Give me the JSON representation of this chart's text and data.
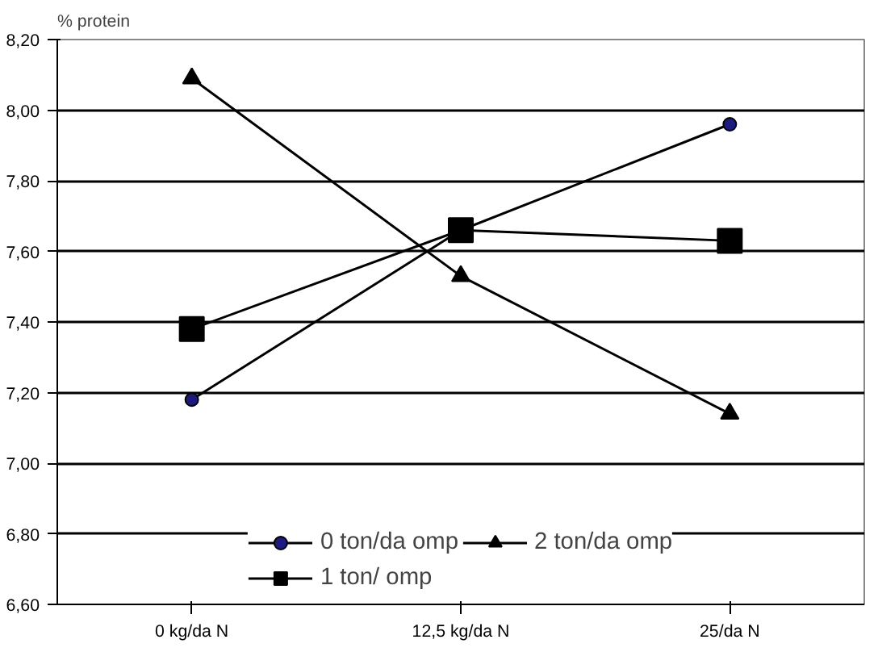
{
  "chart_data": {
    "type": "line",
    "ylabel": "% protein",
    "categories": [
      "0 kg/da N",
      "12,5 kg/da N",
      "25/da N"
    ],
    "series": [
      {
        "name": "0 ton/da omp",
        "color": "#000000",
        "marker": "circle",
        "values": [
          7.18,
          7.66,
          7.96
        ]
      },
      {
        "name": "1 ton/ omp",
        "color": "#000000",
        "marker": "square",
        "values": [
          7.38,
          7.66,
          7.63
        ]
      },
      {
        "name": "2 ton/da omp",
        "color": "#000000",
        "marker": "triangle",
        "values": [
          8.09,
          7.53,
          7.14
        ]
      }
    ],
    "ylim": [
      6.6,
      8.2
    ],
    "yticks": [
      {
        "value": 6.6,
        "label": "6,60"
      },
      {
        "value": 6.8,
        "label": "6,80"
      },
      {
        "value": 7.0,
        "label": "7,00"
      },
      {
        "value": 7.2,
        "label": "7,20"
      },
      {
        "value": 7.4,
        "label": "7,40"
      },
      {
        "value": 7.6,
        "label": "7,60"
      },
      {
        "value": 7.8,
        "label": "7,80"
      },
      {
        "value": 8.0,
        "label": "8,00"
      },
      {
        "value": 8.2,
        "label": "8,20"
      }
    ],
    "grid": "y",
    "legend": "bottom",
    "line_style": "solid"
  }
}
